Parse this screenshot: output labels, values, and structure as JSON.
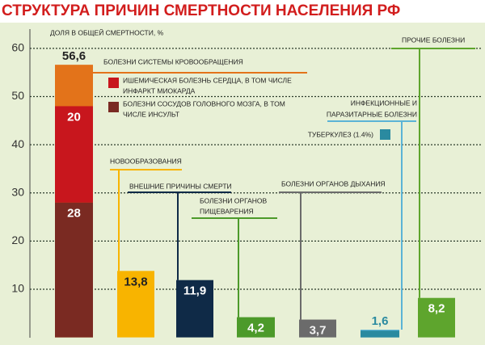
{
  "chart_data": {
    "type": "bar",
    "title": "СТРУКТУРА ПРИЧИН СМЕРТНОСТИ НАСЕЛЕНИЯ РФ",
    "y_label": "ДОЛЯ В ОБЩЕЙ СМЕРТНОСТИ, %",
    "ylim": [
      0,
      63
    ],
    "yticks": [
      10,
      20,
      30,
      40,
      50,
      60
    ],
    "grid": true,
    "bars": [
      {
        "name": [
          "БОЛЕЗНИ СИСТЕМЫ КРОВООБРАЩЕНИЯ"
        ],
        "value": 56.6,
        "value_label": "56,6",
        "color": "#e3731a",
        "parts": [
          {
            "name": [
              "БОЛЕЗНИ СОСУДОВ ГОЛОВНОГО МОЗГА, В ТОМ",
              "ЧИСЛЕ ИНСУЛЬТ"
            ],
            "value": 28,
            "color": "#7a2a22"
          },
          {
            "name": [
              "ИШЕМИЧЕСКАЯ БОЛЕЗНЬ СЕРДЦА, В ТОМ ЧИСЛЕ",
              "ИНФАРКТ МИОКАРДА"
            ],
            "value": 20,
            "color": "#c8161d"
          }
        ]
      },
      {
        "name": [
          "НОВООБРАЗОВАНИЯ"
        ],
        "value": 13.8,
        "value_label": "13,8",
        "color": "#f8b400"
      },
      {
        "name": [
          "ВНЕШНИЕ ПРИЧИНЫ СМЕРТИ"
        ],
        "value": 11.9,
        "value_label": "11,9",
        "color": "#0f2a47"
      },
      {
        "name": [
          "БОЛЕЗНИ ОРГАНОВ",
          "ПИЩЕВАРЕНИЯ"
        ],
        "value": 4.2,
        "value_label": "4,2",
        "color": "#4c9a2a"
      },
      {
        "name": [
          "БОЛЕЗНИ ОРГАНОВ ДЫХАНИЯ"
        ],
        "value": 3.7,
        "value_label": "3,7",
        "color": "#6b6b6b"
      },
      {
        "name": [
          "ИНФЕКЦИОННЫЕ И",
          "ПАРАЗИТАРНЫЕ БОЛЕЗНИ"
        ],
        "value": 1.6,
        "value_label": "1,6",
        "color": "#5bb3d6",
        "parts": [
          {
            "name": [
              "ТУБЕРКУЛЕЗ (1.4%)"
            ],
            "value": 1.4,
            "color": "#2a8aa0"
          }
        ]
      },
      {
        "name": [
          "ПРОЧИЕ БОЛЕЗНИ"
        ],
        "value": 8.2,
        "value_label": "8,2",
        "color": "#5ea52d"
      }
    ]
  }
}
